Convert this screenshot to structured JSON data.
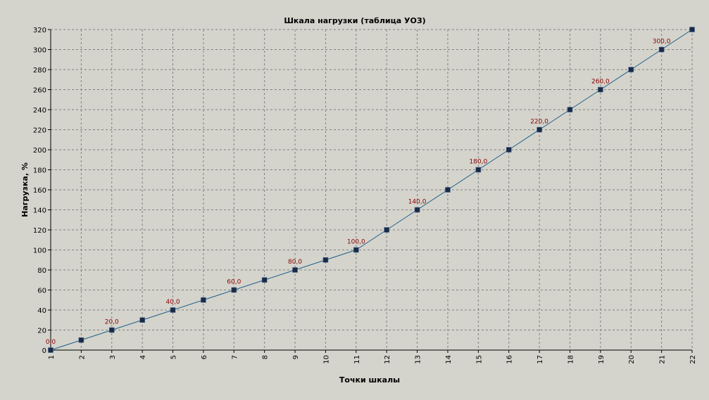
{
  "chart_data": {
    "type": "line",
    "title": "Шкала нагрузки (таблица УОЗ)",
    "xlabel": "Точки шкалы",
    "ylabel": "Нагрузка, %",
    "x": [
      1,
      2,
      3,
      4,
      5,
      6,
      7,
      8,
      9,
      10,
      11,
      12,
      13,
      14,
      15,
      16,
      17,
      18,
      19,
      20,
      21,
      22
    ],
    "values": [
      0,
      10,
      20,
      30,
      40,
      50,
      60,
      70,
      80,
      90,
      100,
      120,
      140,
      160,
      180,
      200,
      220,
      240,
      260,
      280,
      300,
      320
    ],
    "data_labels": [
      {
        "x": 1,
        "text": "0,0"
      },
      {
        "x": 3,
        "text": "20,0"
      },
      {
        "x": 5,
        "text": "40,0"
      },
      {
        "x": 7,
        "text": "60,0"
      },
      {
        "x": 9,
        "text": "80,0"
      },
      {
        "x": 11,
        "text": "100,0"
      },
      {
        "x": 13,
        "text": "140,0"
      },
      {
        "x": 15,
        "text": "180,0"
      },
      {
        "x": 17,
        "text": "220,0"
      },
      {
        "x": 19,
        "text": "260,0"
      },
      {
        "x": 21,
        "text": "300,0"
      }
    ],
    "xlim": [
      1,
      22
    ],
    "ylim": [
      0,
      320
    ],
    "yticks": [
      0,
      20,
      40,
      60,
      80,
      100,
      120,
      140,
      160,
      180,
      200,
      220,
      240,
      260,
      280,
      300,
      320
    ],
    "grid": true,
    "colors": {
      "line": "#1f5f8b",
      "marker": "#1a2a44",
      "data_label": "#8b0000",
      "grid": "#808080",
      "background": "#d4d4cc"
    }
  }
}
